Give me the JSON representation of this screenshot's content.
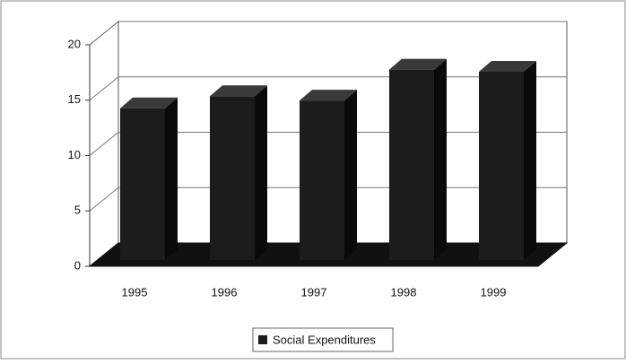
{
  "chart_data": {
    "type": "bar3d",
    "categories": [
      "1995",
      "1996",
      "1997",
      "1998",
      "1999"
    ],
    "series": [
      {
        "name": "Social Expenditures",
        "color": "#1c1c1c",
        "values": [
          13.7,
          14.8,
          14.4,
          17.2,
          17.0
        ]
      }
    ],
    "ylim": [
      0,
      20
    ],
    "yticks": [
      0,
      5,
      10,
      15,
      20
    ],
    "grid": true,
    "legend": "bottom"
  }
}
